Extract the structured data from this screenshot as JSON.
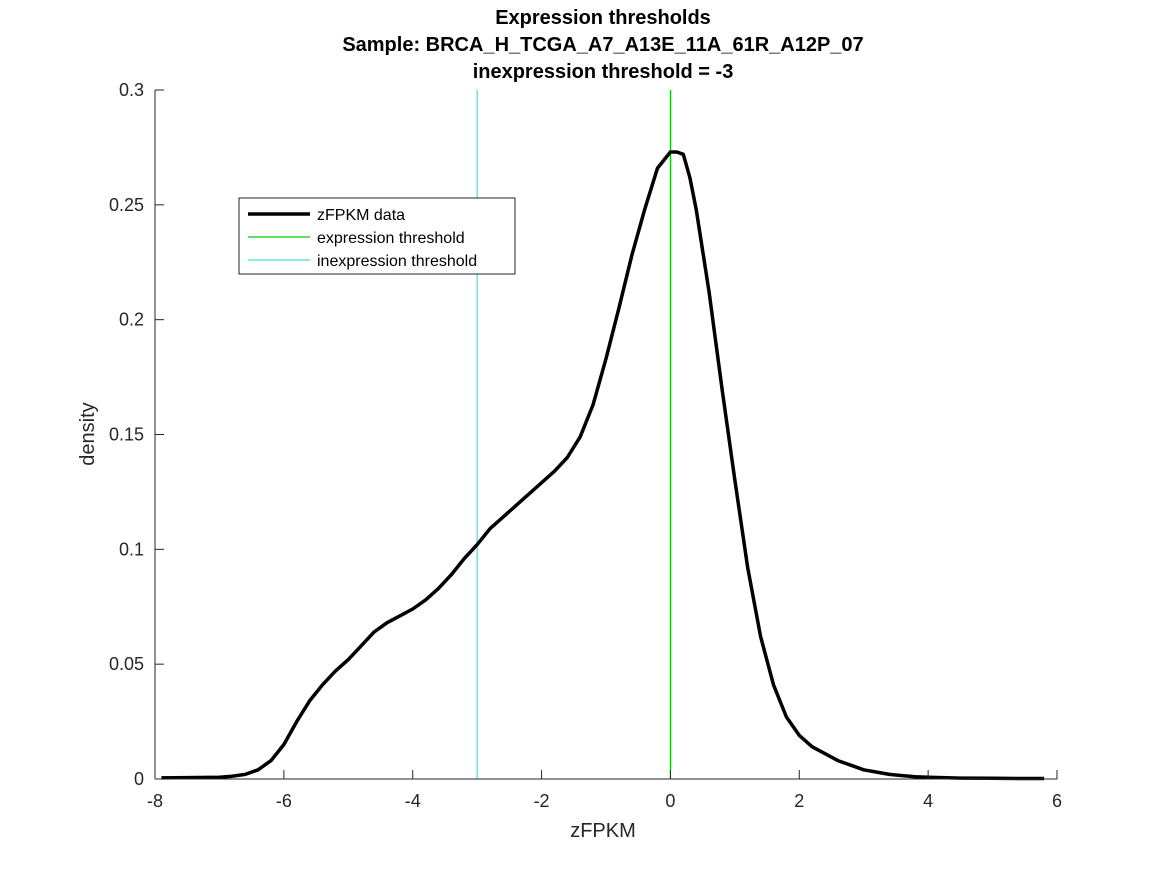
{
  "chart_data": {
    "type": "line",
    "title": [
      "Expression thresholds",
      "Sample: BRCA_H_TCGA_A7_A13E_11A_61R_A12P_07",
      "inexpression threshold = -3"
    ],
    "xlabel": "zFPKM",
    "ylabel": "density",
    "xlim": [
      -8,
      6
    ],
    "ylim": [
      0,
      0.3
    ],
    "xticks": [
      -8,
      -6,
      -4,
      -2,
      0,
      2,
      4,
      6
    ],
    "xtick_labels": [
      "-8",
      "-6",
      "-4",
      "-2",
      "0",
      "2",
      "4",
      "6"
    ],
    "yticks": [
      0,
      0.05,
      0.1,
      0.15,
      0.2,
      0.25,
      0.3
    ],
    "ytick_labels": [
      "0",
      "0.05",
      "0.1",
      "0.15",
      "0.2",
      "0.25",
      "0.3"
    ],
    "grid": false,
    "legend_position": "upper-left",
    "series": [
      {
        "name": "zFPKM data",
        "color": "#000000",
        "x": [
          -7.9,
          -7.5,
          -7.0,
          -6.8,
          -6.6,
          -6.4,
          -6.2,
          -6.0,
          -5.8,
          -5.6,
          -5.4,
          -5.2,
          -5.0,
          -4.8,
          -4.6,
          -4.4,
          -4.2,
          -4.0,
          -3.8,
          -3.6,
          -3.4,
          -3.2,
          -3.0,
          -2.8,
          -2.6,
          -2.4,
          -2.2,
          -2.0,
          -1.8,
          -1.6,
          -1.4,
          -1.2,
          -1.0,
          -0.8,
          -0.6,
          -0.4,
          -0.2,
          0.0,
          0.1,
          0.2,
          0.3,
          0.4,
          0.6,
          0.8,
          1.0,
          1.2,
          1.4,
          1.6,
          1.8,
          2.0,
          2.2,
          2.4,
          2.6,
          2.8,
          3.0,
          3.2,
          3.4,
          3.6,
          3.8,
          4.0,
          4.5,
          5.0,
          5.5,
          5.8
        ],
        "y": [
          0.0005,
          0.0006,
          0.0008,
          0.0012,
          0.002,
          0.004,
          0.008,
          0.015,
          0.025,
          0.034,
          0.041,
          0.047,
          0.052,
          0.058,
          0.064,
          0.068,
          0.071,
          0.074,
          0.078,
          0.083,
          0.089,
          0.096,
          0.102,
          0.109,
          0.114,
          0.119,
          0.124,
          0.129,
          0.134,
          0.14,
          0.149,
          0.163,
          0.183,
          0.205,
          0.228,
          0.248,
          0.266,
          0.273,
          0.273,
          0.272,
          0.262,
          0.248,
          0.212,
          0.17,
          0.13,
          0.092,
          0.062,
          0.041,
          0.027,
          0.019,
          0.014,
          0.011,
          0.008,
          0.006,
          0.004,
          0.003,
          0.002,
          0.0015,
          0.001,
          0.0008,
          0.0004,
          0.0003,
          0.0002,
          0.0002
        ]
      }
    ],
    "vlines": [
      {
        "name": "expression threshold",
        "x": 0,
        "color": "#00d000"
      },
      {
        "name": "inexpression threshold",
        "x": -3,
        "color": "#33e6e6"
      }
    ]
  }
}
